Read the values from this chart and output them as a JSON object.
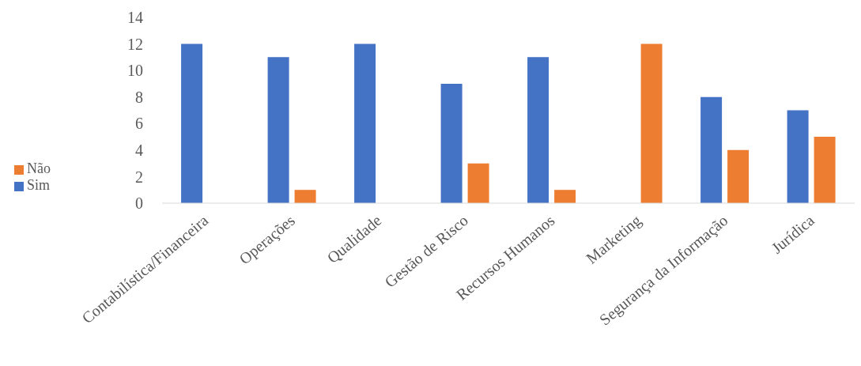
{
  "chart_data": {
    "type": "bar",
    "categories": [
      "Contabilística/Financeira",
      "Operações",
      "Qualidade",
      "Gestão de Risco",
      "Recursos Humanos",
      "Marketing",
      "Segurança da Informação",
      "Jurídica"
    ],
    "series": [
      {
        "name": "Sim",
        "color": "#4472c4",
        "values": [
          12,
          11,
          12,
          9,
          11,
          0,
          8,
          7
        ]
      },
      {
        "name": "Não",
        "color": "#ed7d31",
        "values": [
          0,
          1,
          0,
          3,
          1,
          12,
          4,
          5
        ]
      }
    ],
    "ylim": [
      0,
      14
    ],
    "yticks": [
      0,
      2,
      4,
      6,
      8,
      10,
      12,
      14
    ],
    "grid": false,
    "legend": "left"
  }
}
